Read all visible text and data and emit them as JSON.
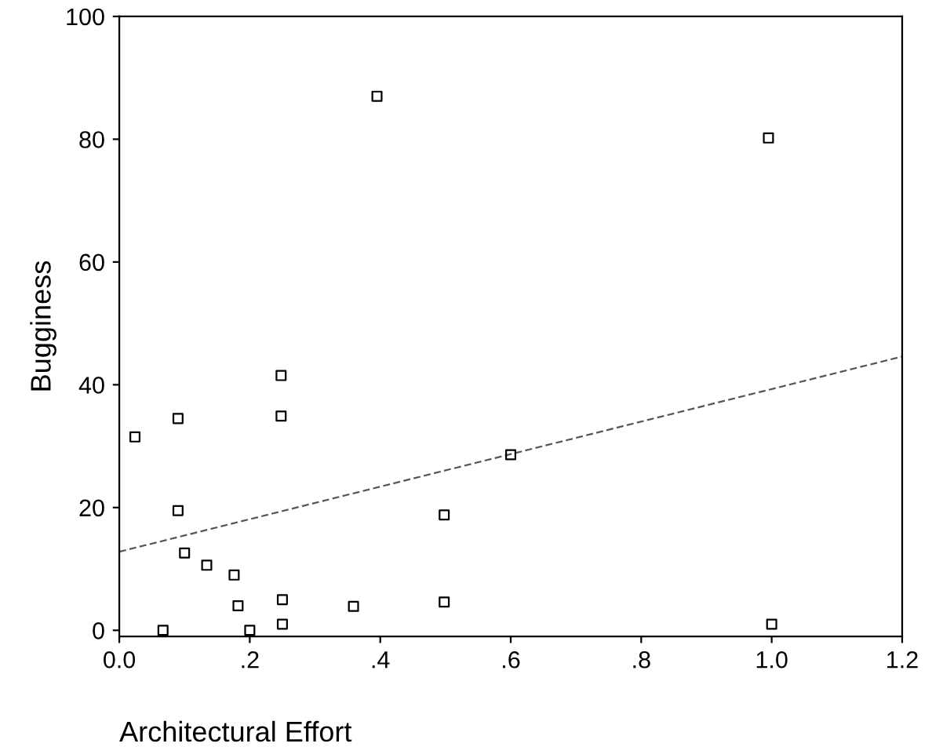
{
  "chart_data": {
    "type": "scatter",
    "xlabel": "Architectural Effort",
    "ylabel": "Bugginess",
    "xlim": [
      0,
      1.2
    ],
    "ylim": [
      -1,
      100
    ],
    "xticks": [
      {
        "value": 0,
        "label": "0.0"
      },
      {
        "value": 0.2,
        "label": ".2"
      },
      {
        "value": 0.4,
        "label": ".4"
      },
      {
        "value": 0.6,
        "label": ".6"
      },
      {
        "value": 0.8,
        "label": ".8"
      },
      {
        "value": 1.0,
        "label": "1.0"
      },
      {
        "value": 1.2,
        "label": "1.2"
      }
    ],
    "yticks": [
      0,
      20,
      40,
      60,
      80,
      100
    ],
    "grid": false,
    "legend": false,
    "marker": "square",
    "series": [
      {
        "color": "#000000",
        "x": [
          0.024,
          0.09,
          0.248,
          0.248,
          0.09,
          0.1,
          0.134,
          0.176,
          0.182,
          0.25,
          0.359,
          0.498,
          0.498,
          0.067,
          0.2,
          0.25,
          0.6,
          1.0,
          0.395,
          0.995
        ],
        "values": [
          31.5,
          34.5,
          41.5,
          34.9,
          19.5,
          12.6,
          10.6,
          9.0,
          4.0,
          5.0,
          3.9,
          4.6,
          18.8,
          0,
          0,
          1.0,
          28.6,
          1,
          87.0,
          80.2
        ]
      },
      {
        "type": "line",
        "color": "#555555",
        "line_style": "dashed",
        "marker": "none",
        "x": [
          0,
          1.2
        ],
        "values": [
          12.8,
          44.6
        ]
      }
    ]
  }
}
